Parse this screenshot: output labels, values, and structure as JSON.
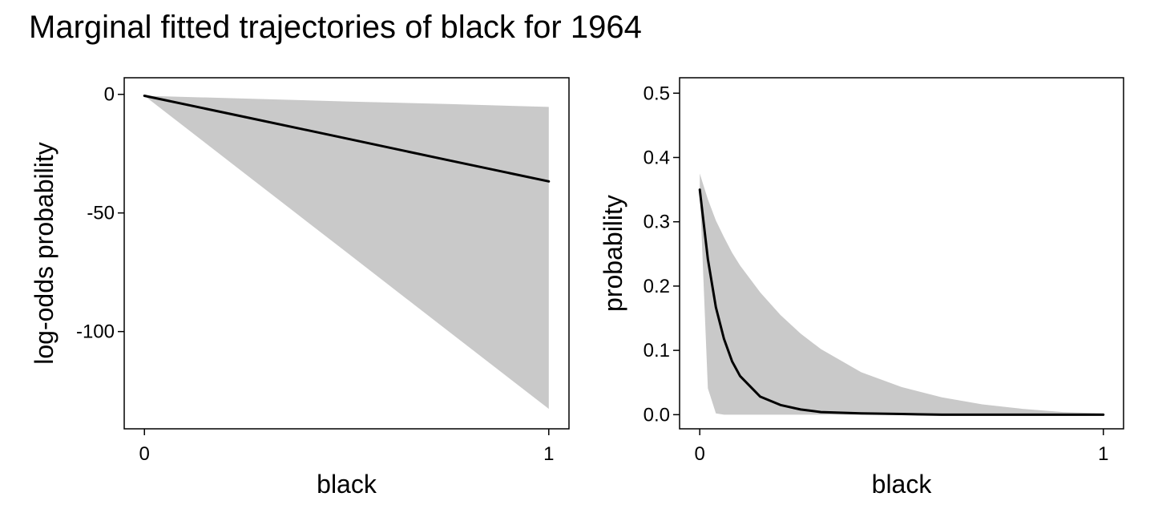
{
  "title": "Marginal fitted trajectories of black for 1964",
  "colors": {
    "band": "#c9c9c9",
    "line": "#000000",
    "frame": "#000000"
  },
  "chart_data": [
    {
      "type": "line",
      "xlabel": "black",
      "ylabel": "log-odds probability",
      "xlim": [
        -0.05,
        1.05
      ],
      "ylim": [
        -141,
        7
      ],
      "xticks": [
        0,
        1
      ],
      "xtick_labels": [
        "0",
        "1"
      ],
      "yticks": [
        0,
        -50,
        -100
      ],
      "ytick_labels": [
        "0",
        "-50",
        "-100"
      ],
      "grid": false,
      "series": [
        {
          "x": [
            0,
            0.25,
            0.5,
            0.75,
            1
          ],
          "y": [
            -0.6,
            -9.6,
            -18.6,
            -27.7,
            -36.7
          ],
          "lower": [
            -0.6,
            -33.6,
            -66.6,
            -99.6,
            -132.6
          ],
          "upper": [
            -0.6,
            -1.8,
            -3.0,
            -4.1,
            -5.3
          ]
        }
      ]
    },
    {
      "type": "line",
      "xlabel": "black",
      "ylabel": "probability",
      "xlim": [
        -0.05,
        1.05
      ],
      "ylim": [
        -0.022,
        0.524
      ],
      "xticks": [
        0,
        1
      ],
      "xtick_labels": [
        "0",
        "1"
      ],
      "yticks": [
        0,
        0.1,
        0.2,
        0.3,
        0.4,
        0.5
      ],
      "ytick_labels": [
        "0.0",
        "0.1",
        "0.2",
        "0.3",
        "0.4",
        "0.5"
      ],
      "grid": false,
      "series": [
        {
          "x": [
            0,
            0.02,
            0.04,
            0.06,
            0.08,
            0.1,
            0.15,
            0.2,
            0.25,
            0.3,
            0.4,
            0.5,
            0.6,
            0.7,
            0.8,
            0.9,
            1.0
          ],
          "y": [
            0.35,
            0.242,
            0.167,
            0.118,
            0.083,
            0.06,
            0.028,
            0.015,
            0.008,
            0.004,
            0.002,
            0.001,
            0.0,
            0.0,
            0.0,
            0.0,
            0.0
          ],
          "lower": [
            0.35,
            0.041,
            0.002,
            0.0,
            0.0,
            0.0,
            0.0,
            0.0,
            0.0,
            0.0,
            0.0,
            0.0,
            0.0,
            0.0,
            0.0,
            0.0,
            0.0
          ],
          "upper": [
            0.375,
            0.335,
            0.302,
            0.276,
            0.252,
            0.232,
            0.19,
            0.155,
            0.126,
            0.102,
            0.066,
            0.043,
            0.027,
            0.016,
            0.009,
            0.004,
            0.002
          ]
        }
      ]
    }
  ]
}
